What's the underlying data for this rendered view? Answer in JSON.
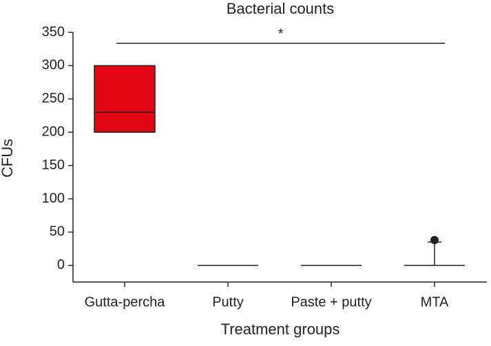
{
  "chart_data": {
    "type": "box",
    "title": "Bacterial counts",
    "x_label": "Treatment groups",
    "y_label": "CFUs",
    "categories": [
      "Gutta-percha",
      "Putty",
      "Paste + putty",
      "MTA"
    ],
    "boxes": [
      {
        "whisker_low": 200,
        "q1": 200,
        "median": 230,
        "q3": 300,
        "whisker_high": 300,
        "outliers": []
      },
      {
        "whisker_low": 0,
        "q1": 0,
        "median": 0,
        "q3": 0,
        "whisker_high": 0,
        "outliers": []
      },
      {
        "whisker_low": 0,
        "q1": 0,
        "median": 0,
        "q3": 0,
        "whisker_high": 0,
        "outliers": []
      },
      {
        "whisker_low": 0,
        "q1": 0,
        "median": 0,
        "q3": 0,
        "whisker_high": 35,
        "outliers": [
          38
        ]
      }
    ],
    "color": "#e30613",
    "ylim": [
      -25,
      350
    ],
    "yticks": [
      0,
      50,
      100,
      150,
      200,
      250,
      300,
      350
    ],
    "annotation": "*"
  }
}
